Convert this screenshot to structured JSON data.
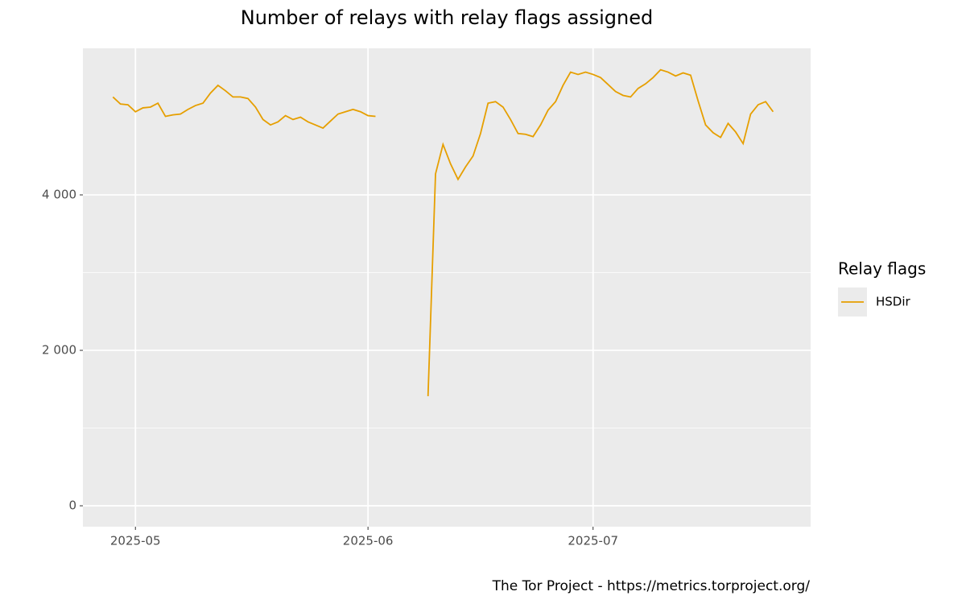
{
  "chart_data": {
    "type": "line",
    "title": "Number of relays with relay flags assigned",
    "caption": "The Tor Project - https://metrics.torproject.org/",
    "legend_title": "Relay flags",
    "legend_position": "right",
    "grid": true,
    "x": [
      "2025-04-28",
      "2025-04-29",
      "2025-04-30",
      "2025-05-01",
      "2025-05-02",
      "2025-05-03",
      "2025-05-04",
      "2025-05-05",
      "2025-05-06",
      "2025-05-07",
      "2025-05-08",
      "2025-05-09",
      "2025-05-10",
      "2025-05-11",
      "2025-05-12",
      "2025-05-13",
      "2025-05-14",
      "2025-05-15",
      "2025-05-16",
      "2025-05-17",
      "2025-05-18",
      "2025-05-19",
      "2025-05-20",
      "2025-05-21",
      "2025-05-22",
      "2025-05-23",
      "2025-05-24",
      "2025-05-25",
      "2025-05-26",
      "2025-05-27",
      "2025-05-28",
      "2025-05-29",
      "2025-05-30",
      "2025-05-31",
      "2025-06-01",
      "2025-06-02",
      "2025-06-03",
      "2025-06-04",
      "2025-06-05",
      "2025-06-06",
      "2025-06-07",
      "2025-06-08",
      "2025-06-09",
      "2025-06-10",
      "2025-06-11",
      "2025-06-12",
      "2025-06-13",
      "2025-06-14",
      "2025-06-15",
      "2025-06-16",
      "2025-06-17",
      "2025-06-18",
      "2025-06-19",
      "2025-06-20",
      "2025-06-21",
      "2025-06-22",
      "2025-06-23",
      "2025-06-24",
      "2025-06-25",
      "2025-06-26",
      "2025-06-27",
      "2025-06-28",
      "2025-06-29",
      "2025-06-30",
      "2025-07-01",
      "2025-07-02",
      "2025-07-03",
      "2025-07-04",
      "2025-07-05",
      "2025-07-06",
      "2025-07-07",
      "2025-07-08",
      "2025-07-09",
      "2025-07-10",
      "2025-07-11",
      "2025-07-12",
      "2025-07-13",
      "2025-07-14",
      "2025-07-15",
      "2025-07-16",
      "2025-07-17",
      "2025-07-18",
      "2025-07-19",
      "2025-07-20",
      "2025-07-21",
      "2025-07-22",
      "2025-07-23",
      "2025-07-24",
      "2025-07-25"
    ],
    "series": [
      {
        "name": "HSDir",
        "color": "#e69f00",
        "values": [
          5260,
          5170,
          5160,
          5070,
          5120,
          5130,
          5180,
          5010,
          5030,
          5040,
          5100,
          5150,
          5180,
          5310,
          5410,
          5340,
          5260,
          5260,
          5240,
          5130,
          4970,
          4900,
          4940,
          5020,
          4970,
          5000,
          4940,
          4900,
          4860,
          4950,
          5040,
          5070,
          5100,
          5070,
          5020,
          5010,
          null,
          null,
          null,
          null,
          null,
          null,
          1410,
          4270,
          4650,
          4400,
          4200,
          4360,
          4500,
          4790,
          5180,
          5200,
          5130,
          4970,
          4790,
          4780,
          4750,
          4900,
          5090,
          5200,
          5410,
          5580,
          5550,
          5580,
          5550,
          5510,
          5420,
          5330,
          5280,
          5260,
          5370,
          5430,
          5510,
          5610,
          5580,
          5530,
          5570,
          5540,
          5210,
          4900,
          4800,
          4740,
          4920,
          4810,
          4660,
          5040,
          5160,
          5200,
          5070
        ]
      }
    ],
    "xlim": [
      "2025-04-24",
      "2025-07-30"
    ],
    "xticks": [
      {
        "value": "2025-05-01",
        "label": "2025-05"
      },
      {
        "value": "2025-06-01",
        "label": "2025-06"
      },
      {
        "value": "2025-07-01",
        "label": "2025-07"
      }
    ],
    "ylim": [
      -269,
      5886
    ],
    "yticks": [
      0,
      {
        "value": 2000,
        "label": "2 000"
      },
      {
        "value": 4000,
        "label": "4 000"
      }
    ]
  }
}
